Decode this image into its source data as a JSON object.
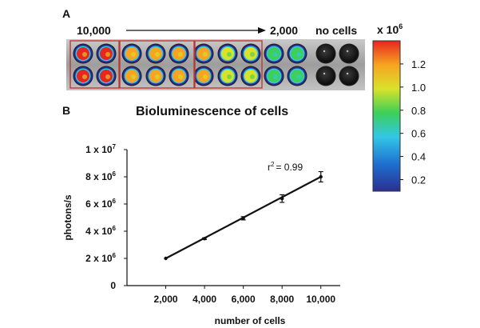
{
  "panel_a": {
    "letter": "A",
    "label_start": "10,000",
    "label_end": "2,000",
    "label_none": "no cells",
    "colorbar": {
      "unit_prefix": "x 10",
      "unit_exp": "6",
      "ticks": [
        "1.2",
        "1.0",
        "0.8",
        "0.6",
        "0.4",
        "0.2"
      ],
      "tick_values": [
        1.2,
        1.0,
        0.8,
        0.6,
        0.4,
        0.2
      ],
      "range": [
        0.1,
        1.4
      ]
    },
    "well_intensity": [
      1.3,
      1.3,
      1.25,
      1.25,
      1.2,
      1.15,
      0.95,
      0.95,
      0.7,
      0.7,
      0.0,
      0.0
    ],
    "colors": [
      "#2b2f8f",
      "#1f6fd0",
      "#33c6e6",
      "#3ccf5a",
      "#d9e22a",
      "#f6a421",
      "#e8251f"
    ]
  },
  "panel_b": {
    "letter": "B",
    "title": "Bioluminescence of cells",
    "annotation_r": "r",
    "annotation_exp": "2",
    "annotation_val": "= 0.99"
  },
  "chart_data": {
    "type": "line",
    "title": "Bioluminescence of cells",
    "xlabel": "number of cells",
    "ylabel": "photons/s",
    "x": [
      2000,
      4000,
      6000,
      8000,
      10000
    ],
    "xticks": [
      "2,000",
      "4,000",
      "6,000",
      "8,000",
      "10,000"
    ],
    "xlim": [
      0,
      11000
    ],
    "ylim": [
      0,
      10000000
    ],
    "yticks": [
      {
        "value": 0,
        "mant": "0",
        "exp": ""
      },
      {
        "value": 2000000,
        "mant": "2 x 10",
        "exp": "6"
      },
      {
        "value": 4000000,
        "mant": "4 x 10",
        "exp": "6"
      },
      {
        "value": 6000000,
        "mant": "6 x 10",
        "exp": "6"
      },
      {
        "value": 8000000,
        "mant": "8 x 10",
        "exp": "6"
      },
      {
        "value": 10000000,
        "mant": "1 x 10",
        "exp": "7"
      }
    ],
    "series": [
      {
        "values": [
          2000000,
          3450000,
          4950000,
          6400000,
          8000000
        ],
        "errors": [
          40000,
          60000,
          120000,
          280000,
          380000
        ]
      }
    ],
    "fit_line": {
      "x": [
        2000,
        10000
      ],
      "y": [
        2000000,
        8000000
      ]
    },
    "r_squared": 0.99,
    "grid": false
  }
}
